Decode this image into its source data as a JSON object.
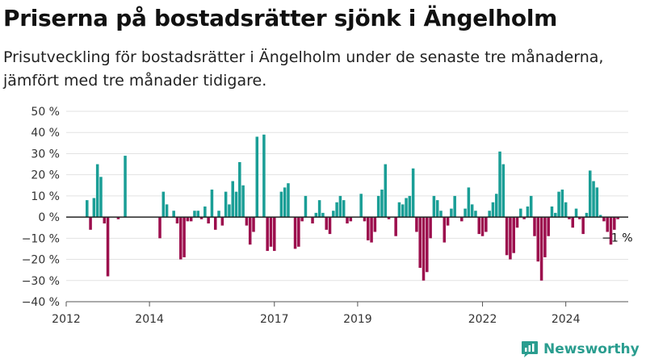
{
  "title": "Priserna på bostadsrätter sjönk i Ängelholm",
  "subtitle": "Prisutveckling för bostadsrätter i Ängelholm under de senaste tre månaderna, jämfört med tre månader tidigare.",
  "brand": "Newsworthy",
  "colors": {
    "positive": "#1a9e96",
    "negative": "#9c0e4d",
    "grid": "#e2e2e2",
    "brand": "#2a9d8f"
  },
  "chart_data": {
    "type": "bar",
    "title": "Priserna på bostadsrätter sjönk i Ängelholm",
    "xlabel": "",
    "ylabel": "",
    "ylim": [
      -40,
      50
    ],
    "yticks": [
      50,
      40,
      30,
      20,
      10,
      0,
      -10,
      -20,
      -30,
      -40
    ],
    "ytick_labels": [
      "50 %",
      "40 %",
      "30 %",
      "20 %",
      "10 %",
      "0 %",
      "−10 %",
      "−20 %",
      "−30 %",
      "−40 %"
    ],
    "xticks": [
      2012,
      2014,
      2017,
      2019,
      2022,
      2024
    ],
    "xlim": [
      2012.0,
      2025.5
    ],
    "grid": true,
    "start_year": 2012.5,
    "period": "monthly",
    "values": [
      8,
      -6,
      9,
      25,
      19,
      -3,
      -28,
      0,
      0,
      -1,
      0,
      29,
      0,
      0,
      0,
      0,
      0,
      0,
      0,
      0,
      0,
      -10,
      12,
      6,
      0,
      3,
      -3,
      -20,
      -19,
      -2,
      -2,
      3,
      3,
      -1,
      5,
      -3,
      13,
      -6,
      3,
      -4,
      12,
      6,
      17,
      12,
      26,
      15,
      -4,
      -13,
      -7,
      38,
      0,
      39,
      -16,
      -14,
      -16,
      0,
      12,
      14,
      16,
      0,
      -15,
      -14,
      -2,
      10,
      0,
      -3,
      2,
      8,
      2,
      -6,
      -8,
      3,
      7,
      10,
      8,
      -3,
      -2,
      0,
      0,
      11,
      -2,
      -11,
      -12,
      -7,
      10,
      13,
      25,
      -1,
      0,
      -9,
      7,
      6,
      9,
      10,
      23,
      -7,
      -24,
      -30,
      -26,
      -10,
      10,
      8,
      3,
      -12,
      -4,
      4,
      10,
      0,
      -2,
      4,
      14,
      6,
      3,
      -8,
      -9,
      -7,
      3,
      7,
      11,
      31,
      25,
      -18,
      -20,
      -17,
      -5,
      4,
      -1,
      5,
      10,
      -9,
      -21,
      -30,
      -19,
      -9,
      5,
      2,
      12,
      13,
      7,
      -1,
      -5,
      4,
      -1,
      -8,
      2,
      22,
      17,
      14,
      1,
      -2,
      -7,
      -13,
      -6,
      -1
    ],
    "annotation": {
      "text": "−1 %",
      "value": -1
    }
  }
}
